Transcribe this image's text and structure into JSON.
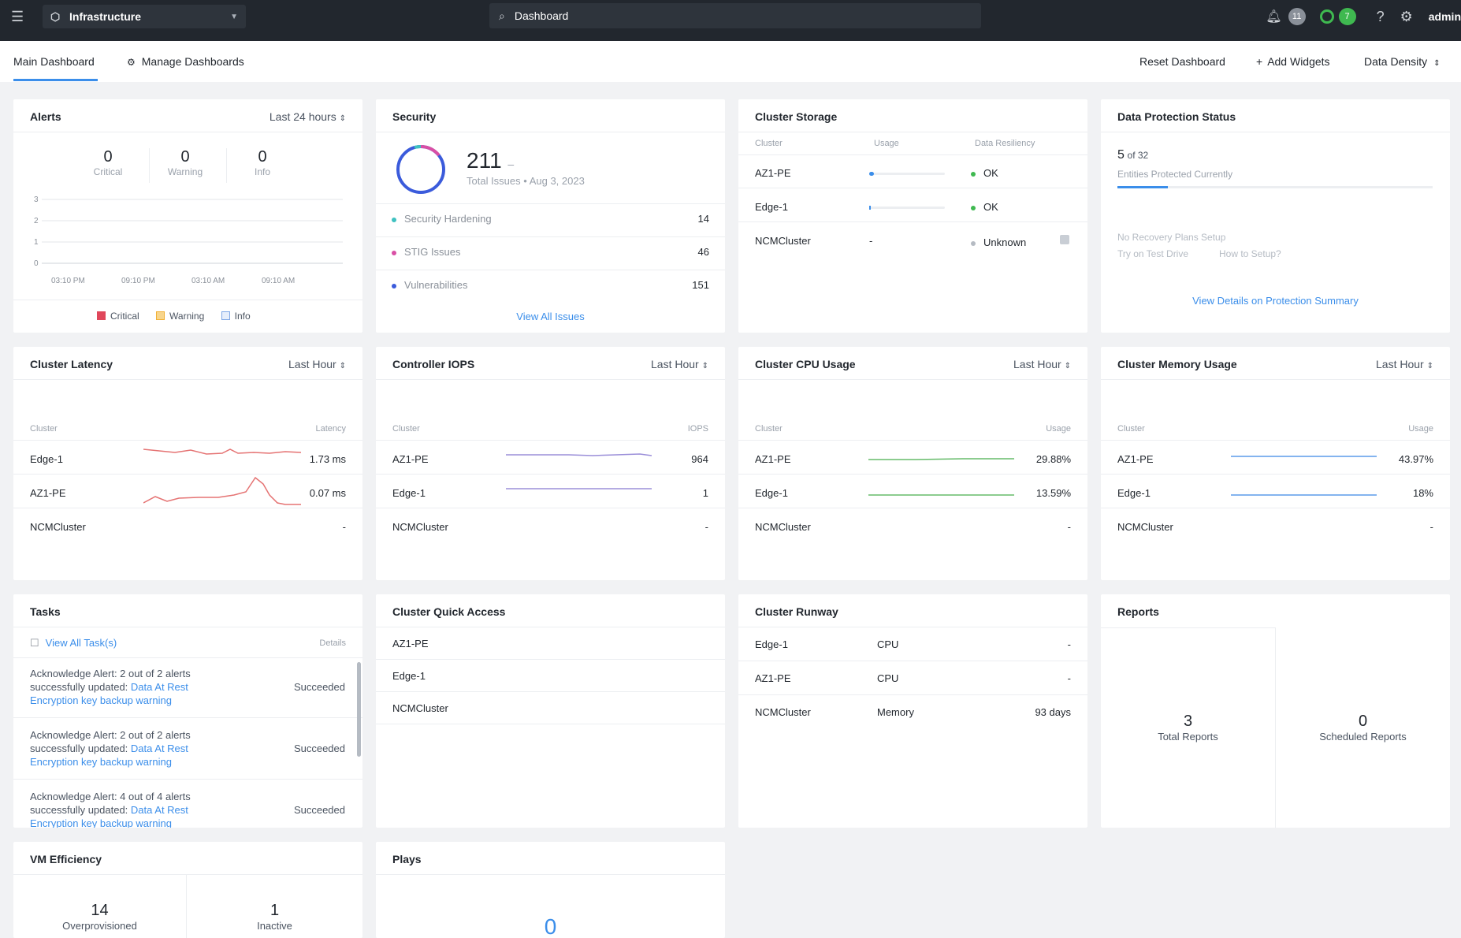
{
  "topbar": {
    "app_name": "Infrastructure",
    "search_value": "Dashboard",
    "notifications_count": "11",
    "tasks_count": "7",
    "help_label": "?",
    "user": "admin"
  },
  "subnav": {
    "main_tab": "Main Dashboard",
    "manage_tab": "Manage Dashboards",
    "reset": "Reset Dashboard",
    "add_widgets": "Add Widgets",
    "density": "Data Density"
  },
  "alerts": {
    "title": "Alerts",
    "range": "Last 24 hours",
    "counts": [
      {
        "value": "0",
        "label": "Critical"
      },
      {
        "value": "0",
        "label": "Warning"
      },
      {
        "value": "0",
        "label": "Info"
      }
    ],
    "y_ticks": [
      "3",
      "2",
      "1",
      "0"
    ],
    "x_ticks": [
      "03:10 PM",
      "09:10 PM",
      "03:10 AM",
      "09:10 AM"
    ],
    "legend": [
      {
        "label": "Critical",
        "color": "#e0475b"
      },
      {
        "label": "Warning",
        "color": "#f2b035"
      },
      {
        "label": "Info",
        "color": "#7fa7e6"
      }
    ]
  },
  "security": {
    "title": "Security",
    "total": "211",
    "dash": "–",
    "subtitle": "Total Issues • Aug 3, 2023",
    "items": [
      {
        "label": "Security Hardening",
        "value": "14",
        "color": "#3fc1c0"
      },
      {
        "label": "STIG Issues",
        "value": "46",
        "color": "#d94fa5"
      },
      {
        "label": "Vulnerabilities",
        "value": "151",
        "color": "#3b5bdb"
      }
    ],
    "view_all": "View All Issues"
  },
  "storage": {
    "title": "Cluster Storage",
    "headers": [
      "Cluster",
      "Usage",
      "Data Resiliency"
    ],
    "rows": [
      {
        "cluster": "AZ1-PE",
        "usage": 0.05,
        "status": "OK",
        "status_color": "#3fb950"
      },
      {
        "cluster": "Edge-1",
        "usage": 0.01,
        "status": "OK",
        "status_color": "#3fb950"
      },
      {
        "cluster": "NCMCluster",
        "usage_text": "-",
        "status": "Unknown",
        "status_color": "#b5bbc3"
      }
    ]
  },
  "protection": {
    "title": "Data Protection Status",
    "count": "5",
    "of_label": "of 32",
    "subtitle": "Entities Protected Currently",
    "progress": 0.16,
    "no_plans": "No Recovery Plans Setup",
    "test_drive": "Try on Test Drive",
    "how_to": "How to Setup?",
    "view_details": "View Details on Protection Summary"
  },
  "latency": {
    "title": "Cluster Latency",
    "range": "Last Hour",
    "col_left": "Cluster",
    "col_right": "Latency",
    "rows": [
      {
        "cluster": "Edge-1",
        "value": "1.73 ms"
      },
      {
        "cluster": "AZ1-PE",
        "value": "0.07 ms"
      },
      {
        "cluster": "NCMCluster",
        "value": "-"
      }
    ]
  },
  "iops": {
    "title": "Controller IOPS",
    "range": "Last Hour",
    "col_left": "Cluster",
    "col_right": "IOPS",
    "rows": [
      {
        "cluster": "AZ1-PE",
        "value": "964"
      },
      {
        "cluster": "Edge-1",
        "value": "1"
      },
      {
        "cluster": "NCMCluster",
        "value": "-"
      }
    ]
  },
  "cpu": {
    "title": "Cluster CPU Usage",
    "range": "Last Hour",
    "col_left": "Cluster",
    "col_right": "Usage",
    "rows": [
      {
        "cluster": "AZ1-PE",
        "value": "29.88%"
      },
      {
        "cluster": "Edge-1",
        "value": "13.59%"
      },
      {
        "cluster": "NCMCluster",
        "value": "-"
      }
    ]
  },
  "memory": {
    "title": "Cluster Memory Usage",
    "range": "Last Hour",
    "col_left": "Cluster",
    "col_right": "Usage",
    "rows": [
      {
        "cluster": "AZ1-PE",
        "value": "43.97%"
      },
      {
        "cluster": "Edge-1",
        "value": "18%"
      },
      {
        "cluster": "NCMCluster",
        "value": "-"
      }
    ]
  },
  "tasks": {
    "title": "Tasks",
    "view_all": "View All Task(s)",
    "details": "Details",
    "items": [
      {
        "line1": "Acknowledge Alert: 2 out of 2 alerts",
        "line2a": "successfully updated:",
        "line2b": "Data At Rest",
        "line3": "Encryption key backup warning",
        "status": "Succeeded"
      },
      {
        "line1": "Acknowledge Alert: 2 out of 2 alerts",
        "line2a": "successfully updated:",
        "line2b": "Data At Rest",
        "line3": "Encryption key backup warning",
        "status": "Succeeded"
      },
      {
        "line1": "Acknowledge Alert: 4 out of 4 alerts",
        "line2a": "successfully updated:",
        "line2b": "Data At Rest",
        "line3": "Encryption key backup warning",
        "status": "Succeeded"
      }
    ]
  },
  "quick_access": {
    "title": "Cluster Quick Access",
    "items": [
      "AZ1-PE",
      "Edge-1",
      "NCMCluster"
    ]
  },
  "runway": {
    "title": "Cluster Runway",
    "rows": [
      {
        "cluster": "Edge-1",
        "resource": "CPU",
        "value": "-"
      },
      {
        "cluster": "AZ1-PE",
        "resource": "CPU",
        "value": "-"
      },
      {
        "cluster": "NCMCluster",
        "resource": "Memory",
        "value": "93 days"
      }
    ]
  },
  "reports": {
    "title": "Reports",
    "total": "3",
    "total_label": "Total Reports",
    "scheduled": "0",
    "scheduled_label": "Scheduled Reports"
  },
  "vm_efficiency": {
    "title": "VM Efficiency",
    "overprovisioned": "14",
    "overprovisioned_label": "Overprovisioned",
    "inactive": "1",
    "inactive_label": "Inactive"
  },
  "plays": {
    "title": "Plays",
    "value": "0"
  },
  "colors": {
    "topbar": "#22272e",
    "accent": "#3b8eea",
    "latency_line": "#e57373",
    "iops_line": "#9b8fd9",
    "cpu_line": "#66bb6a",
    "memory_line": "#5b9bea"
  }
}
